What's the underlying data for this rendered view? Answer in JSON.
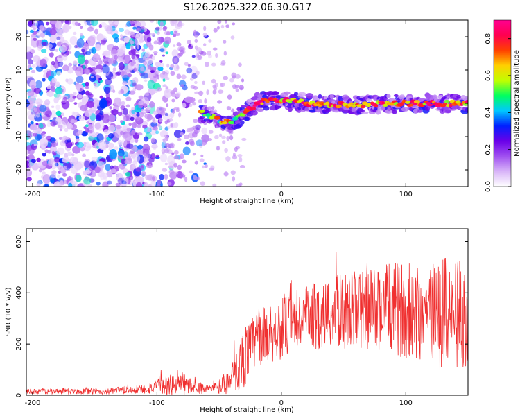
{
  "chart_data": [
    {
      "type": "heatmap",
      "title": "S126.2025.322.06.30.G17",
      "xlabel": "Height of straight line (km)",
      "ylabel": "Frequency (Hz)",
      "xlim": [
        -205,
        150
      ],
      "ylim": [
        -25,
        25
      ],
      "xticks": [
        -200,
        -100,
        0,
        100
      ],
      "yticks": [
        -20,
        -10,
        0,
        10,
        20
      ],
      "colorbar": {
        "label": "Normalized spectral amplitude",
        "range": [
          0,
          0.9
        ],
        "ticks": [
          0.0,
          0.2,
          0.4,
          0.6,
          0.8
        ],
        "tick_labels": [
          "0.0",
          "0.2",
          "0.4",
          "0.6",
          "0.8"
        ],
        "colormap": [
          "#ffffff",
          "#d8b4f8",
          "#a050f0",
          "#6a00e8",
          "#0020ff",
          "#00c8ff",
          "#00ff60",
          "#c0ff00",
          "#ffd000",
          "#ff4000",
          "#ff0050",
          "#ff0090"
        ]
      },
      "ridge": {
        "description_points": [
          {
            "x": -60,
            "y": -3
          },
          {
            "x": -50,
            "y": -5
          },
          {
            "x": -40,
            "y": -6
          },
          {
            "x": -30,
            "y": -3
          },
          {
            "x": -20,
            "y": 0
          },
          {
            "x": -10,
            "y": 1
          },
          {
            "x": 0,
            "y": 1
          },
          {
            "x": 20,
            "y": 0
          },
          {
            "x": 60,
            "y": -0.5
          },
          {
            "x": 100,
            "y": 0
          },
          {
            "x": 150,
            "y": 0
          }
        ]
      }
    },
    {
      "type": "line",
      "xlabel": "Height of straight line (km)",
      "ylabel": "SNR (10 * v/v)",
      "xlim": [
        -205,
        150
      ],
      "ylim": [
        0,
        650
      ],
      "xticks": [
        -200,
        -100,
        0,
        100
      ],
      "yticks": [
        0,
        200,
        400,
        600
      ],
      "color": "#f03030",
      "envelope": [
        {
          "x": -205,
          "base": 15,
          "amp": 10
        },
        {
          "x": -140,
          "base": 15,
          "amp": 12
        },
        {
          "x": -110,
          "base": 25,
          "amp": 20
        },
        {
          "x": -80,
          "base": 45,
          "amp": 50
        },
        {
          "x": -70,
          "base": 30,
          "amp": 25
        },
        {
          "x": -55,
          "base": 25,
          "amp": 15
        },
        {
          "x": -40,
          "base": 60,
          "amp": 60
        },
        {
          "x": -30,
          "base": 150,
          "amp": 120
        },
        {
          "x": -20,
          "base": 220,
          "amp": 110
        },
        {
          "x": 0,
          "base": 260,
          "amp": 120
        },
        {
          "x": 20,
          "base": 300,
          "amp": 130
        },
        {
          "x": 50,
          "base": 330,
          "amp": 150
        },
        {
          "x": 80,
          "base": 340,
          "amp": 170
        },
        {
          "x": 110,
          "base": 330,
          "amp": 200
        },
        {
          "x": 130,
          "base": 320,
          "amp": 230
        },
        {
          "x": 150,
          "base": 310,
          "amp": 200
        }
      ]
    }
  ]
}
